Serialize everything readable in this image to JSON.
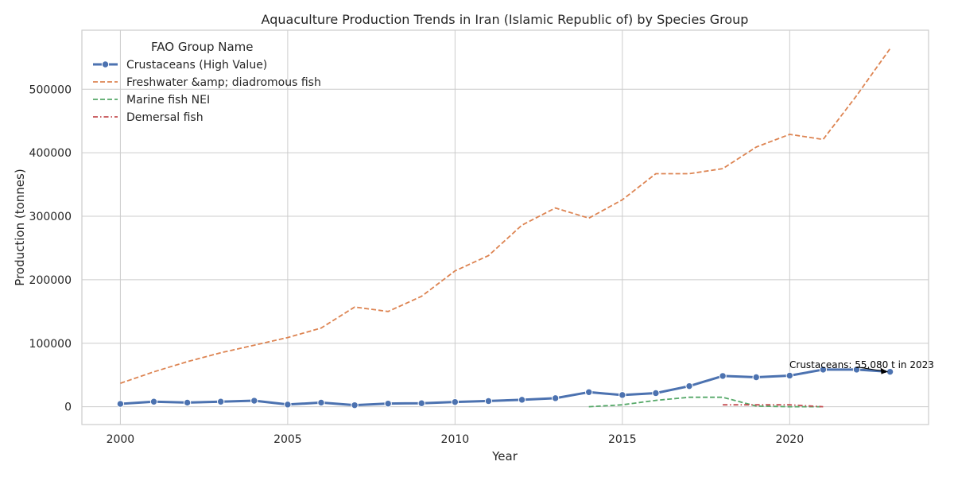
{
  "chart_data": {
    "type": "line",
    "title": "Aquaculture Production Trends in Iran (Islamic Republic of) by Species Group",
    "xlabel": "Year",
    "ylabel": "Production (tonnes)",
    "xlim": [
      1998.85,
      2024.15
    ],
    "ylim": [
      -28000,
      593000
    ],
    "xticks": [
      2000,
      2005,
      2010,
      2015,
      2020
    ],
    "yticks": [
      0,
      100000,
      200000,
      300000,
      400000,
      500000
    ],
    "grid": true,
    "legend": {
      "title": "FAO Group Name",
      "position": "top-left"
    },
    "series": [
      {
        "name": "Crustaceans (High Value)",
        "color": "#4c72b0",
        "style": "solid-markers",
        "x": [
          2000,
          2001,
          2002,
          2003,
          2004,
          2005,
          2006,
          2007,
          2008,
          2009,
          2010,
          2011,
          2012,
          2013,
          2014,
          2015,
          2016,
          2017,
          2018,
          2019,
          2020,
          2021,
          2022,
          2023
        ],
        "values": [
          4500,
          8000,
          6500,
          8000,
          9500,
          3500,
          6500,
          2500,
          5000,
          5500,
          7500,
          9000,
          11000,
          13500,
          23000,
          18500,
          21500,
          32500,
          48500,
          46500,
          49000,
          58500,
          58500,
          55080
        ]
      },
      {
        "name": "Freshwater &amp; diadromous fish",
        "color": "#dd8452",
        "style": "dashed",
        "x": [
          2000,
          2001,
          2002,
          2003,
          2004,
          2005,
          2006,
          2007,
          2008,
          2009,
          2010,
          2011,
          2012,
          2013,
          2014,
          2015,
          2016,
          2017,
          2018,
          2019,
          2020,
          2021,
          2022,
          2023
        ],
        "values": [
          37000,
          55000,
          71000,
          85000,
          97000,
          109000,
          124000,
          157000,
          150000,
          174000,
          214000,
          238000,
          286000,
          313000,
          297000,
          326000,
          367000,
          367000,
          375000,
          409000,
          429000,
          421000,
          490000,
          564000
        ]
      },
      {
        "name": "Marine fish NEI",
        "color": "#55a868",
        "style": "dashed",
        "x": [
          2014,
          2015,
          2016,
          2017,
          2018,
          2019,
          2020,
          2021
        ],
        "values": [
          0,
          3000,
          10000,
          15000,
          15000,
          1000,
          0,
          0
        ]
      },
      {
        "name": "Demersal fish",
        "color": "#c44e52",
        "style": "dashdot",
        "x": [
          2018,
          2019,
          2020,
          2021
        ],
        "values": [
          3000,
          3000,
          3000,
          0
        ]
      }
    ],
    "annotations": [
      {
        "text": "Crustaceans: 55,080 t in 2023",
        "x": 2023,
        "y": 55080
      }
    ]
  }
}
